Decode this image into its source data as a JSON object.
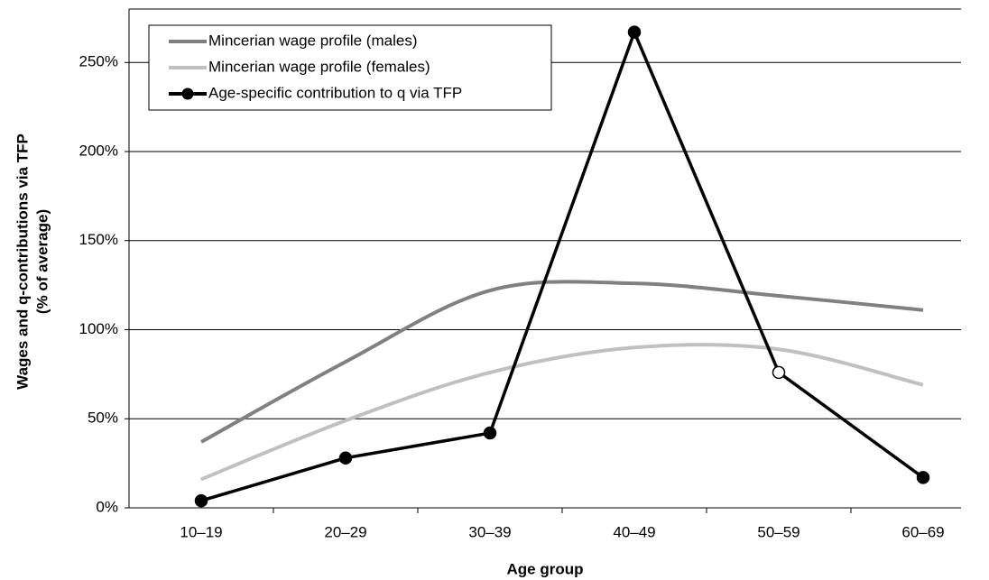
{
  "chart_data": {
    "type": "line",
    "xlabel": "Age group",
    "ylabel": "Wages and q-contributions via TFP",
    "ylabel2": "(% of average)",
    "categories": [
      "10–19",
      "20–29",
      "30–39",
      "40–49",
      "50–59",
      "60–69"
    ],
    "series": [
      {
        "name": "Mincerian wage profile (males)",
        "color": "#808080",
        "smooth": true,
        "markers": false,
        "values": [
          37,
          82,
          122,
          126,
          119,
          111
        ]
      },
      {
        "name": "Mincerian wage profile (females)",
        "color": "#c0c0c0",
        "smooth": true,
        "markers": false,
        "values": [
          16,
          49,
          76,
          90,
          89,
          69
        ]
      },
      {
        "name": "Age-specific contribution to q via TFP",
        "color": "#000000",
        "smooth": false,
        "markers": true,
        "hollow_markers": [
          4
        ],
        "values": [
          4,
          28,
          42,
          267,
          76,
          17
        ]
      }
    ],
    "ylim": [
      0,
      280
    ],
    "yticks": [
      {
        "value": 0,
        "label": "0%"
      },
      {
        "value": 50,
        "label": "50%"
      },
      {
        "value": 100,
        "label": "100%"
      },
      {
        "value": 150,
        "label": "150%"
      },
      {
        "value": 200,
        "label": "200%"
      },
      {
        "value": 250,
        "label": "250%"
      }
    ],
    "grid": true,
    "legend": "top-left"
  }
}
